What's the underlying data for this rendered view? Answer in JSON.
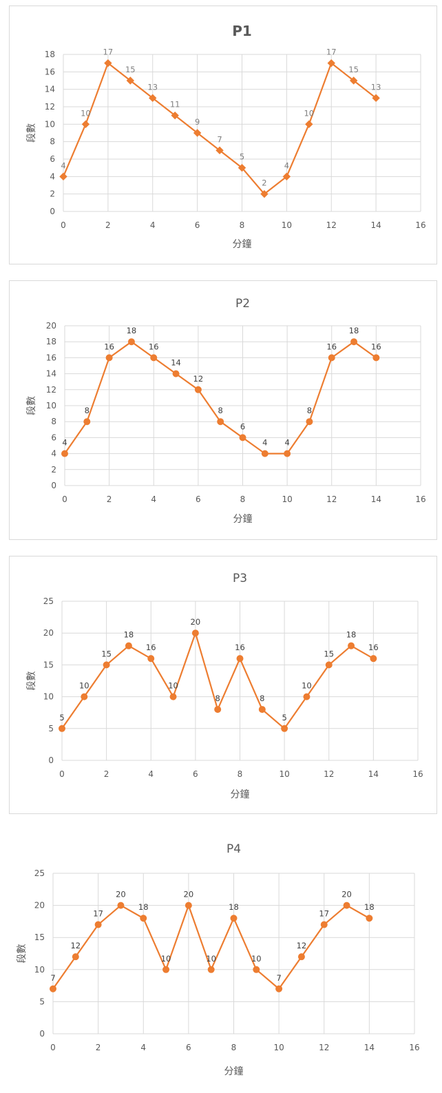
{
  "colors": {
    "series": "#ED7D31",
    "grid": "#D9D9D9",
    "axis_text": "#595959",
    "label_light": "#7F7F7F",
    "label_dark": "#404040"
  },
  "chart_data": [
    {
      "type": "scatter",
      "title": "P1",
      "xlabel": "分鐘",
      "ylabel": "段數",
      "xlim": [
        0,
        16
      ],
      "ylim": [
        0,
        18
      ],
      "x_ticks": [
        0,
        2,
        4,
        6,
        8,
        10,
        12,
        14,
        16
      ],
      "y_ticks": [
        0,
        2,
        4,
        6,
        8,
        10,
        12,
        14,
        16,
        18
      ],
      "grid": true,
      "legend": "none",
      "marker": "diamond",
      "series": [
        {
          "x": [
            0,
            1,
            2,
            3,
            4,
            5,
            6,
            7,
            8,
            9,
            10,
            11,
            12,
            13,
            14
          ],
          "values": [
            4,
            10,
            17,
            15,
            13,
            11,
            9,
            7,
            5,
            2,
            4,
            10,
            17,
            15,
            13
          ],
          "labels": [
            "4",
            "10",
            "17",
            "15",
            "13",
            "11",
            "9",
            "7",
            "5",
            "2",
            "4",
            "10",
            "17",
            "15",
            "13"
          ]
        }
      ]
    },
    {
      "type": "scatter",
      "title": "P2",
      "xlabel": "分鐘",
      "ylabel": "段數",
      "xlim": [
        0,
        16
      ],
      "ylim": [
        0,
        20
      ],
      "x_ticks": [
        0,
        2,
        4,
        6,
        8,
        10,
        12,
        14,
        16
      ],
      "y_ticks": [
        0,
        2,
        4,
        6,
        8,
        10,
        12,
        14,
        16,
        18,
        20
      ],
      "grid": true,
      "legend": "none",
      "marker": "circle",
      "series": [
        {
          "x": [
            0,
            1,
            2,
            3,
            4,
            5,
            6,
            7,
            8,
            9,
            10,
            11,
            12,
            13,
            14
          ],
          "values": [
            4,
            8,
            16,
            18,
            16,
            14,
            12,
            8,
            6,
            4,
            4,
            8,
            16,
            18,
            16
          ],
          "labels": [
            "4",
            "8",
            "16",
            "18",
            "16",
            "14",
            "12",
            "8",
            "6",
            "4",
            "4",
            "8",
            "16",
            "18",
            "16"
          ]
        }
      ]
    },
    {
      "type": "scatter",
      "title": "P3",
      "xlabel": "分鐘",
      "ylabel": "段數",
      "xlim": [
        0,
        16
      ],
      "ylim": [
        0,
        25
      ],
      "x_ticks": [
        0,
        2,
        4,
        6,
        8,
        10,
        12,
        14,
        16
      ],
      "y_ticks": [
        0,
        5,
        10,
        15,
        20,
        25
      ],
      "grid": true,
      "legend": "none",
      "marker": "circle",
      "series": [
        {
          "x": [
            0,
            1,
            2,
            3,
            4,
            5,
            6,
            7,
            8,
            9,
            10,
            11,
            12,
            13,
            14
          ],
          "values": [
            5,
            10,
            15,
            18,
            16,
            10,
            20,
            8,
            16,
            8,
            5,
            10,
            15,
            18,
            16
          ],
          "labels": [
            "5",
            "10",
            "15",
            "18",
            "16",
            "10",
            "20",
            "8",
            "16",
            "8",
            "5",
            "10",
            "15",
            "18",
            "16"
          ]
        }
      ]
    },
    {
      "type": "scatter",
      "title": "P4",
      "xlabel": "分鐘",
      "ylabel": "段數",
      "xlim": [
        0,
        16
      ],
      "ylim": [
        0,
        25
      ],
      "x_ticks": [
        0,
        2,
        4,
        6,
        8,
        10,
        12,
        14,
        16
      ],
      "y_ticks": [
        0,
        5,
        10,
        15,
        20,
        25
      ],
      "grid": true,
      "legend": "none",
      "marker": "circle",
      "series": [
        {
          "x": [
            0,
            1,
            2,
            3,
            4,
            5,
            6,
            7,
            8,
            9,
            10,
            11,
            12,
            13,
            14
          ],
          "values": [
            7,
            12,
            17,
            20,
            18,
            10,
            20,
            10,
            18,
            10,
            7,
            12,
            17,
            20,
            18
          ],
          "labels": [
            "7",
            "12",
            "17",
            "20",
            "18",
            "10",
            "20",
            "10",
            "18",
            "10",
            "7",
            "12",
            "17",
            "20",
            "18"
          ]
        }
      ]
    }
  ]
}
